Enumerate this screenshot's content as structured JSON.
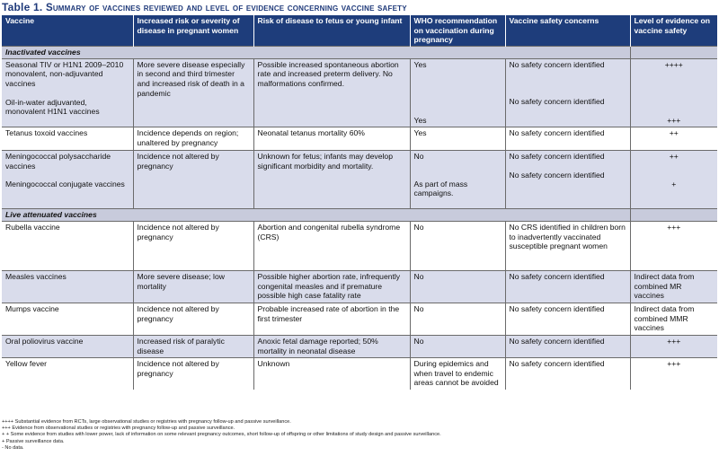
{
  "title": {
    "number": "Table 1.",
    "text": "Summary of vaccines reviewed and level of evidence concerning vaccine safety"
  },
  "columns": [
    "Vaccine",
    "Increased risk or severity of disease in pregnant women",
    "Risk of disease to fetus or young infant",
    "WHO recommendation on vaccination during pregnancy",
    "Vaccine safety concerns",
    "Level of evidence on vaccine safety"
  ],
  "sections": {
    "inactivated": "Inactivated vaccines",
    "live": "Live attenuated vaccines"
  },
  "rows": {
    "tiv": {
      "vaccine": "Seasonal TIV or  H1N1 2009–2010 monovalent, non-adjuvanted vaccines",
      "vaccine2": "Oil-in-water adjuvanted, monovalent H1N1 vaccines",
      "risk": "More severe disease especially in second and third trimester and increased risk of death in a pandemic",
      "fetus": "Possible increased spontaneous abortion rate and increased preterm delivery. No malformations confirmed.",
      "who": "Yes",
      "who2": "Yes",
      "safety": "No safety concern identified",
      "safety2": "No safety concern identified",
      "evidence": "++++",
      "evidence2": "+++"
    },
    "tetanus": {
      "vaccine": "Tetanus toxoid vaccines",
      "risk": "Incidence depends on region; unaltered by pregnancy",
      "fetus": "Neonatal tetanus mortality 60%",
      "who": "Yes",
      "safety": "No safety concern identified",
      "evidence": "++"
    },
    "mening": {
      "vaccine": "Meningococcal polysaccharide vaccines",
      "vaccine2": "Meningococcal conjugate vaccines",
      "risk": "Incidence not altered by pregnancy",
      "fetus": "Unknown for fetus; infants may develop significant morbidity and mortality.",
      "who": "No",
      "who2": "As part of mass campaigns.",
      "safety": "No safety concern identified",
      "safety2": "No safety concern identified",
      "evidence": "++",
      "evidence2": "+"
    },
    "rubella": {
      "vaccine": "Rubella vaccine",
      "risk": "Incidence not altered by pregnancy",
      "fetus": "Abortion and congenital rubella syndrome (CRS)",
      "who": "No",
      "safety": "No CRS identified in children born to inadvertently vaccinated susceptible pregnant women",
      "evidence": "+++"
    },
    "measles": {
      "vaccine": "Measles vaccines",
      "risk": "More severe disease; low mortality",
      "fetus": "Possible higher abortion rate, infrequently congenital measles and if premature possible high case fatality rate",
      "who": "No",
      "safety": "No safety concern identified",
      "evidence": "Indirect data from combined MR vaccines"
    },
    "mumps": {
      "vaccine": "Mumps vaccine",
      "risk": "Incidence not altered by pregnancy",
      "fetus": "Probable increased rate of abortion in the first trimester",
      "who": "No",
      "safety": "No safety concern identified",
      "evidence": "Indirect data from combined MMR vaccines"
    },
    "polio": {
      "vaccine": "Oral poliovirus vaccine",
      "risk": "Increased risk of paralytic disease",
      "fetus": "Anoxic fetal damage reported; 50% mortality in neonatal disease",
      "who": "No",
      "safety": "No safety concern identified",
      "evidence": "+++"
    },
    "yellow": {
      "vaccine": "Yellow fever",
      "risk": "Incidence not altered by pregnancy",
      "fetus": "Unknown",
      "who": "During epidemics and when travel to endemic areas cannot be avoided",
      "safety": "No safety concern identified",
      "evidence": "+++"
    }
  },
  "footnotes": [
    "++++ Substantial evidence from RCTs, large observational studies or registries with pregnancy follow-up and passive surveillance.",
    "+++  Evidence from observational studies or registries with pregnancy follow-up and passive surveillance.",
    "+ +  Some evidence from studies with lower power, lack of information on some relevant pregnancy outcomes, short follow-up of offspring or other limitations of study design and passive surveillance.",
    "+      Passive surveillance data.",
    "-       No data."
  ]
}
